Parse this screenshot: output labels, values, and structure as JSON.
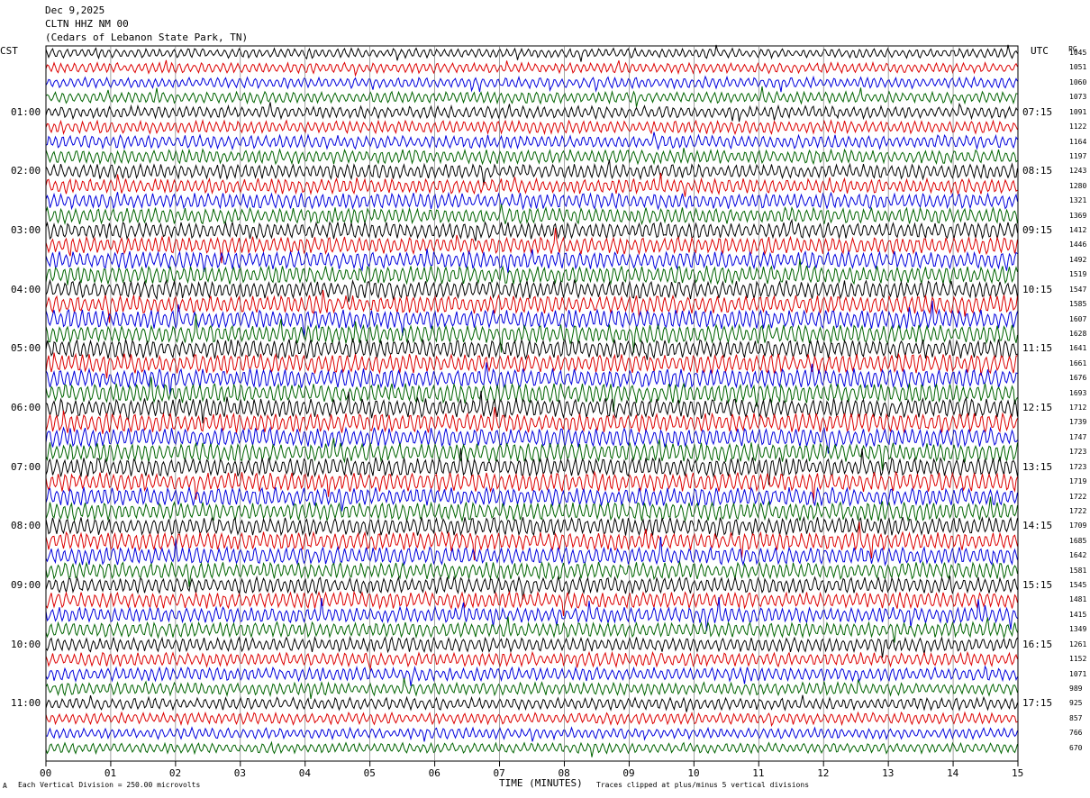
{
  "header": {
    "date": "Dec 9,2025",
    "station": "CLTN HHZ NM 00",
    "location": "(Cedars of Lebanon State Park, TN)"
  },
  "left_zone": "CST",
  "right_zone": "UTC",
  "right_header": "PG",
  "footer": {
    "scale": "Each Vertical Division =  250.00 microvolts",
    "xlabel": "TIME (MINUTES)",
    "clip": "Traces clipped at plus/minus 5 vertical divisions",
    "corner_mark": "A"
  },
  "colors": {
    "trace_cycle": [
      "#000000",
      "#dd0000",
      "#0000dd",
      "#006400"
    ],
    "grid": "#000000"
  },
  "chart_data": {
    "type": "line",
    "description_kind": "helicorder",
    "x_ticks": [
      "00",
      "01",
      "02",
      "03",
      "04",
      "05",
      "06",
      "07",
      "08",
      "09",
      "10",
      "11",
      "12",
      "13",
      "14",
      "15"
    ],
    "xlim": [
      0,
      15
    ],
    "rows": 48,
    "left_labels": [
      "01:00",
      "02:00",
      "03:00",
      "04:00",
      "05:00",
      "06:00",
      "07:00",
      "08:00",
      "09:00",
      "10:00",
      "11:00"
    ],
    "right_labels": [
      "07:15",
      "08:15",
      "09:15",
      "10:15",
      "11:15",
      "12:15",
      "13:15",
      "14:15",
      "15:15",
      "16:15",
      "17:15"
    ],
    "row_values": [
      "1045",
      "1051",
      "1060",
      "1073",
      "1091",
      "1122",
      "1164",
      "1197",
      "1243",
      "1280",
      "1321",
      "1369",
      "1412",
      "1446",
      "1492",
      "1519",
      "1547",
      "1585",
      "1607",
      "1628",
      "1641",
      "1661",
      "1676",
      "1693",
      "1712",
      "1739",
      "1747",
      "1723",
      "1723",
      "1719",
      "1722",
      "1722",
      "1709",
      "1685",
      "1642",
      "1581",
      "1545",
      "1481",
      "1415",
      "1349",
      "1261",
      "1152",
      "1071",
      "989",
      "925",
      "857",
      "766",
      "670"
    ]
  }
}
